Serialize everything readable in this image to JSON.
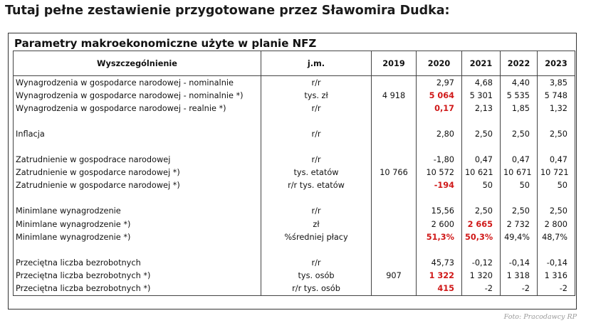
{
  "heading": "Tutaj pełne zestawienie przygotowane przez Sławomira Dudka:",
  "figure_title": "Parametry makroekonomiczne użyte w planie NFZ",
  "columns": [
    "Wyszczególnienie",
    "j.m.",
    "2019",
    "2020",
    "2021",
    "2022",
    "2023"
  ],
  "rows": [
    {
      "label": "Wynagrodzenia w gospodarce narodowej - nominalnie",
      "unit": "r/r",
      "v2019": "",
      "v2020": "2,97",
      "v2021": "4,68",
      "v2022": "4,40",
      "v2023": "3,85"
    },
    {
      "label": "Wynagrodzenia w gospodarce narodowej - nominalnie *)",
      "unit": "tys. zł",
      "v2019": "4 918",
      "v2020": "5 064",
      "v2021": "5 301",
      "v2022": "5 535",
      "v2023": "5 748"
    },
    {
      "label": "Wynagrodzenia w gospodarce narodowej - realnie *)",
      "unit": "r/r",
      "v2019": "",
      "v2020": "0,17",
      "v2021": "2,13",
      "v2022": "1,85",
      "v2023": "1,32"
    },
    {
      "label": "",
      "unit": "",
      "v2019": "",
      "v2020": "",
      "v2021": "",
      "v2022": "",
      "v2023": ""
    },
    {
      "label": "Inflacja",
      "unit": "r/r",
      "v2019": "",
      "v2020": "2,80",
      "v2021": "2,50",
      "v2022": "2,50",
      "v2023": "2,50"
    },
    {
      "label": "",
      "unit": "",
      "v2019": "",
      "v2020": "",
      "v2021": "",
      "v2022": "",
      "v2023": ""
    },
    {
      "label": "Zatrudnienie w gospodrace narodowej",
      "unit": "r/r",
      "v2019": "",
      "v2020": "-1,80",
      "v2021": "0,47",
      "v2022": "0,47",
      "v2023": "0,47"
    },
    {
      "label": "Zatrudnienie w gospodarce narodowej *)",
      "unit": "tys. etatów",
      "v2019": "10 766",
      "v2020": "10 572",
      "v2021": "10 621",
      "v2022": "10 671",
      "v2023": "10 721"
    },
    {
      "label": "Zatrudnienie w gospodarce narodowej *)",
      "unit": "r/r tys. etatów",
      "v2019": "",
      "v2020": "-194",
      "v2021": "50",
      "v2022": "50",
      "v2023": "50"
    },
    {
      "label": "",
      "unit": "",
      "v2019": "",
      "v2020": "",
      "v2021": "",
      "v2022": "",
      "v2023": ""
    },
    {
      "label": "Minimlane wynagrodzenie",
      "unit": "r/r",
      "v2019": "",
      "v2020": "15,56",
      "v2021": "2,50",
      "v2022": "2,50",
      "v2023": "2,50"
    },
    {
      "label": "Minimlane wynagrodzenie *)",
      "unit": "zł",
      "v2019": "",
      "v2020": "2 600",
      "v2021": "2 665",
      "v2022": "2 732",
      "v2023": "2 800"
    },
    {
      "label": "Minimlane wynagrodzenie *)",
      "unit": "%średniej płacy",
      "v2019": "",
      "v2020": "51,3%",
      "v2021": "50,3%",
      "v2022": "49,4%",
      "v2023": "48,7%"
    },
    {
      "label": "",
      "unit": "",
      "v2019": "",
      "v2020": "",
      "v2021": "",
      "v2022": "",
      "v2023": ""
    },
    {
      "label": "Przeciętna liczba bezrobotnych",
      "unit": "r/r",
      "v2019": "",
      "v2020": "45,73",
      "v2021": "-0,12",
      "v2022": "-0,14",
      "v2023": "-0,14"
    },
    {
      "label": "Przeciętna liczba bezrobotnych *)",
      "unit": "tys. osób",
      "v2019": "907",
      "v2020": "1 322",
      "v2021": "1 320",
      "v2022": "1 318",
      "v2023": "1 316"
    },
    {
      "label": "Przeciętna liczba bezrobotnych *)",
      "unit": "r/r tys. osób",
      "v2019": "",
      "v2020": "415",
      "v2021": "-2",
      "v2022": "-2",
      "v2023": "-2"
    }
  ],
  "highlight_color": "#d01919",
  "highlighted_cells": [
    {
      "row": 1,
      "col": "v2020"
    },
    {
      "row": 2,
      "col": "v2020"
    },
    {
      "row": 8,
      "col": "v2020"
    },
    {
      "row": 11,
      "col": "v2021"
    },
    {
      "row": 12,
      "col": "v2020"
    },
    {
      "row": 12,
      "col": "v2021"
    },
    {
      "row": 15,
      "col": "v2020"
    },
    {
      "row": 16,
      "col": "v2020"
    }
  ],
  "source": "Foto: Pracodawcy RP"
}
